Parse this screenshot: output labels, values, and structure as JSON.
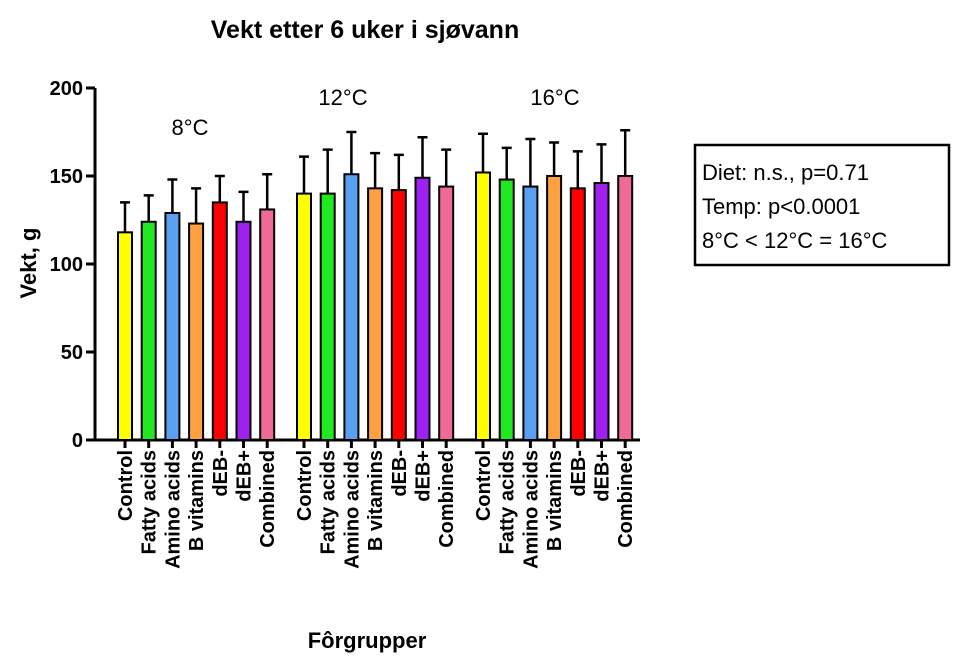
{
  "chart_data": {
    "type": "bar",
    "title": "Vekt etter 6 uker i sjøvann",
    "y_label": "Vekt, g",
    "x_label": "Fôrgrupper",
    "ylim": [
      0,
      200
    ],
    "yticks": [
      0,
      50,
      100,
      150,
      200
    ],
    "colors": [
      "#ffff00",
      "#22e822",
      "#5aa0f0",
      "#ffa040",
      "#ff0000",
      "#a020f0",
      "#f06a96"
    ],
    "groups": [
      {
        "label": "8°C",
        "categories": [
          "Control",
          "Fatty acids",
          "Amino acids",
          "B vitamins",
          "dEB-",
          "dEB+",
          "Combined"
        ],
        "values": [
          118,
          124,
          129,
          123,
          135,
          124,
          131
        ],
        "errors": [
          17,
          15,
          19,
          20,
          15,
          17,
          20
        ]
      },
      {
        "label": "12°C",
        "categories": [
          "Control",
          "Fatty acids",
          "Amino acids",
          "B vitamins",
          "dEB-",
          "dEB+",
          "Combined"
        ],
        "values": [
          140,
          140,
          151,
          143,
          142,
          149,
          144
        ],
        "errors": [
          21,
          25,
          24,
          20,
          20,
          23,
          21
        ]
      },
      {
        "label": "16°C",
        "categories": [
          "Control",
          "Fatty acids",
          "Amino acids",
          "B vitamins",
          "dEB-",
          "dEB+",
          "Combined"
        ],
        "values": [
          152,
          148,
          144,
          150,
          143,
          146,
          150
        ],
        "errors": [
          22,
          18,
          27,
          19,
          21,
          22,
          26
        ]
      }
    ],
    "annotation": [
      "Diet: n.s., p=0.71",
      "Temp: p<0.0001",
      "8°C < 12°C = 16°C"
    ]
  }
}
